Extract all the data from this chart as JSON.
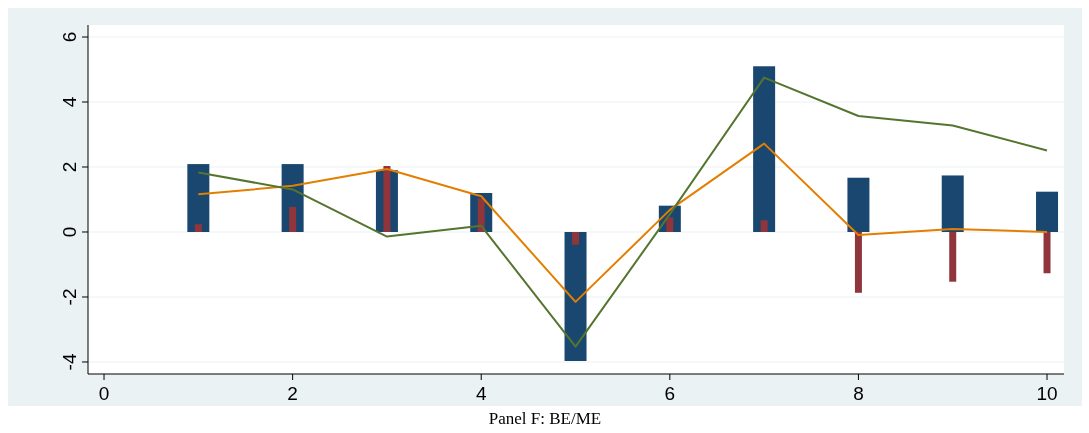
{
  "chart_data": {
    "type": "bar",
    "title": "Panel F: BE/ME",
    "x": [
      1,
      2,
      3,
      4,
      5,
      6,
      7,
      8,
      9,
      10
    ],
    "xlim": [
      -0.17,
      10.18
    ],
    "xticks": [
      0,
      2,
      4,
      6,
      8,
      10
    ],
    "ylim": [
      -4.37,
      6.37
    ],
    "yticks": [
      -4,
      -2,
      0,
      2,
      4,
      6
    ],
    "grid": "y",
    "series": [
      {
        "color": "#1a476f",
        "values": [
          2.09,
          2.09,
          1.9,
          1.2,
          -3.97,
          0.81,
          5.1,
          1.67,
          1.74,
          1.24
        ]
      },
      {
        "color": "#90353b",
        "values": [
          0.24,
          0.77,
          2.03,
          1.03,
          -0.39,
          0.45,
          0.36,
          -1.87,
          -1.53,
          -1.27
        ]
      },
      {
        "type": "line",
        "color": "#e37e00",
        "values": [
          1.16,
          1.42,
          1.94,
          1.1,
          -2.15,
          0.68,
          2.72,
          -0.09,
          0.09,
          0.0
        ]
      },
      {
        "type": "line",
        "color": "#55752f",
        "values": [
          1.83,
          1.31,
          -0.14,
          0.19,
          -3.53,
          0.55,
          4.75,
          3.57,
          3.28,
          2.51
        ]
      }
    ]
  }
}
